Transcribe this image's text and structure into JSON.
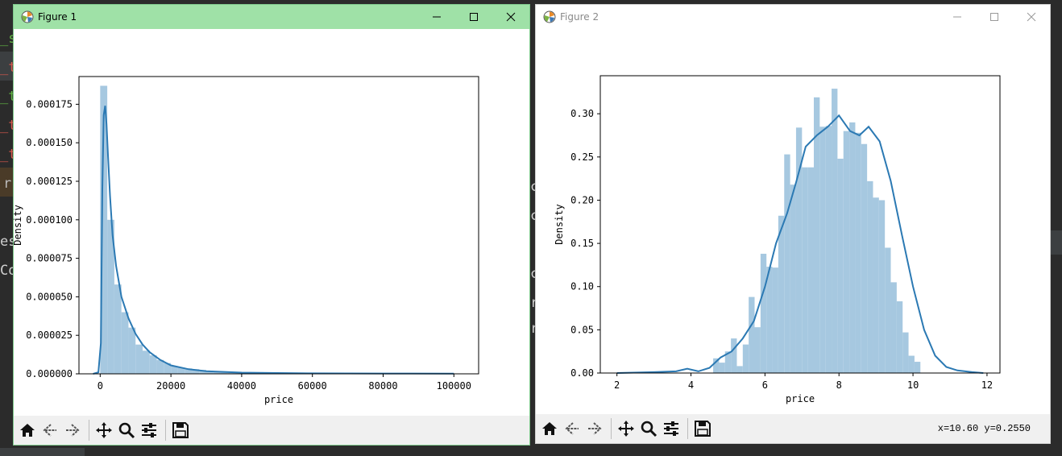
{
  "background": {
    "fragments": [
      "_s",
      "_t",
      "_t",
      "_t",
      "_t",
      "r",
      "es",
      "Co",
      "c",
      "c",
      "c",
      "r",
      "r",
      "r"
    ]
  },
  "fig1": {
    "title": "Figure 1",
    "window_controls": [
      "minimize",
      "maximize",
      "close"
    ],
    "chart_data": {
      "type": "bar",
      "title": "",
      "xlabel": "price",
      "ylabel": "Density",
      "xlim": [
        -6000,
        107000
      ],
      "ylim": [
        0,
        0.000193
      ],
      "xticks": [
        0,
        20000,
        40000,
        60000,
        80000,
        100000
      ],
      "xtick_labels": [
        "0",
        "20000",
        "40000",
        "60000",
        "80000",
        "100000"
      ],
      "yticks": [
        0,
        2.5e-05,
        5e-05,
        7.5e-05,
        0.0001,
        0.000125,
        0.00015,
        0.000175
      ],
      "ytick_labels": [
        "0.000000",
        "0.000025",
        "0.000050",
        "0.000075",
        "0.000100",
        "0.000125",
        "0.000150",
        "0.000175"
      ],
      "bin_start": 0,
      "bin_width": 2000,
      "histogram": [
        0.000187,
        0.0001,
        5.8e-05,
        4e-05,
        3e-05,
        1.9e-05,
        1.5e-05,
        1.2e-05,
        9e-06,
        7e-06,
        5e-06,
        4e-06,
        3.5e-06,
        3e-06,
        2.5e-06,
        2e-06,
        1.5e-06,
        1.2e-06,
        1e-06,
        8e-07
      ],
      "kde": {
        "x": [
          -2000,
          -500,
          200,
          600,
          1000,
          1400,
          1800,
          2200,
          2800,
          3500,
          4500,
          6000,
          8000,
          10000,
          12000,
          14000,
          17000,
          20000,
          25000,
          30000,
          40000,
          50000,
          60000,
          80000,
          100000
        ],
        "y": [
          0,
          1e-06,
          2e-05,
          0.00012,
          0.000168,
          0.000174,
          0.000162,
          0.000142,
          0.000115,
          9e-05,
          7e-05,
          5e-05,
          3.6e-05,
          2.6e-05,
          1.9e-05,
          1.4e-05,
          9e-06,
          5.5e-06,
          3e-06,
          1.7e-06,
          8e-07,
          5e-07,
          3e-07,
          2e-07,
          1e-07
        ]
      },
      "grid": false,
      "bar_color": "#a6c8e0",
      "line_color": "#2b79b3"
    }
  },
  "fig2": {
    "title": "Figure 2",
    "window_controls": [
      "minimize",
      "maximize",
      "close"
    ],
    "coord_readout": "x=10.60 y=0.2550",
    "chart_data": {
      "type": "bar",
      "title": "",
      "xlabel": "price",
      "ylabel": "Density",
      "xlim": [
        1.55,
        12.35
      ],
      "ylim": [
        0,
        0.344
      ],
      "xticks": [
        2,
        4,
        6,
        8,
        10,
        12
      ],
      "xtick_labels": [
        "2",
        "4",
        "6",
        "8",
        "10",
        "12"
      ],
      "yticks": [
        0,
        0.05,
        0.1,
        0.15,
        0.2,
        0.25,
        0.3
      ],
      "ytick_labels": [
        "0.00",
        "0.05",
        "0.10",
        "0.15",
        "0.20",
        "0.25",
        "0.30"
      ],
      "bin_start": 4.6,
      "bin_width": 0.16,
      "histogram": [
        0.017,
        0.012,
        0.025,
        0.04,
        0.008,
        0.033,
        0.088,
        0.053,
        0.138,
        0.123,
        0.122,
        0.182,
        0.253,
        0.218,
        0.284,
        0.238,
        0.238,
        0.319,
        0.285,
        0.286,
        0.329,
        0.248,
        0.28,
        0.29,
        0.278,
        0.265,
        0.222,
        0.203,
        0.2,
        0.145,
        0.105,
        0.083,
        0.047,
        0.02,
        0.013
      ],
      "kde": {
        "x": [
          2.0,
          3.0,
          3.6,
          3.9,
          4.2,
          4.5,
          4.8,
          5.1,
          5.4,
          5.7,
          6.0,
          6.3,
          6.6,
          6.85,
          7.1,
          7.4,
          7.7,
          8.0,
          8.3,
          8.55,
          8.8,
          9.1,
          9.4,
          9.7,
          10.0,
          10.3,
          10.6,
          10.9,
          11.2,
          11.6,
          11.9
        ],
        "y": [
          0.0,
          0.001,
          0.002,
          0.005,
          0.002,
          0.006,
          0.018,
          0.025,
          0.04,
          0.06,
          0.1,
          0.15,
          0.185,
          0.222,
          0.262,
          0.275,
          0.285,
          0.298,
          0.28,
          0.275,
          0.285,
          0.268,
          0.222,
          0.16,
          0.1,
          0.05,
          0.02,
          0.007,
          0.003,
          0.001,
          0.0
        ]
      },
      "grid": false,
      "bar_color": "#a6c8e0",
      "line_color": "#2b79b3"
    }
  },
  "toolbar": {
    "buttons": [
      "home-icon",
      "back-arrow-icon",
      "forward-arrow-icon",
      "pan-icon",
      "zoom-icon",
      "configure-subplots-icon",
      "save-icon"
    ]
  }
}
